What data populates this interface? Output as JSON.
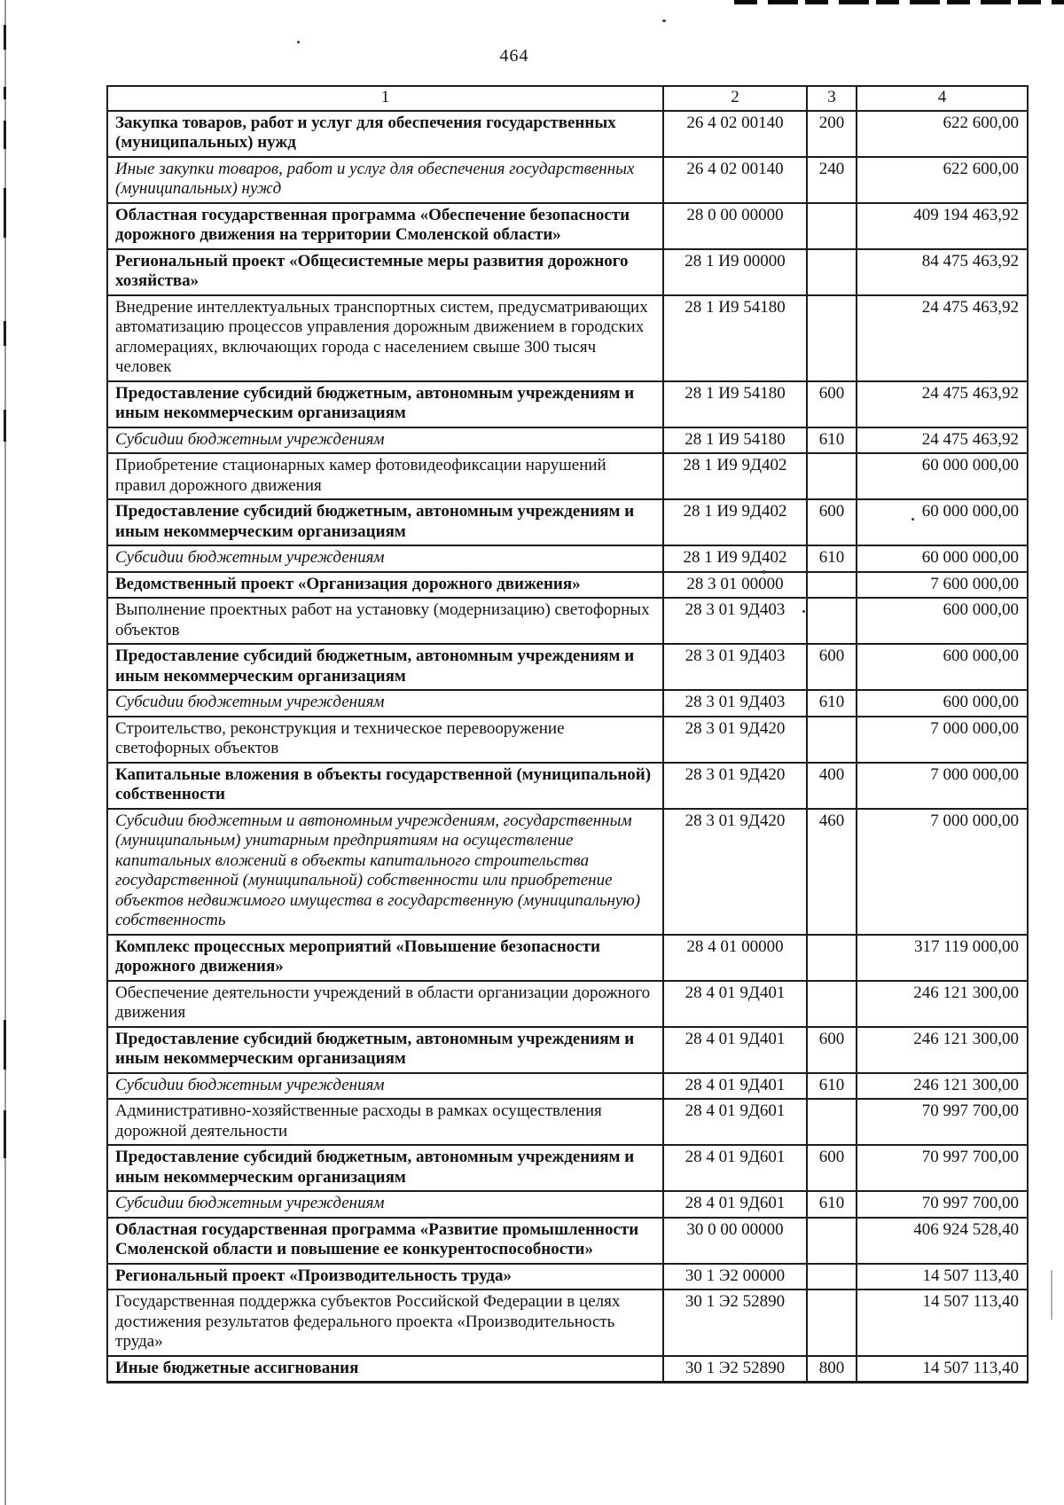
{
  "page": {
    "number": "464"
  },
  "colors": {
    "paper": "#ffffff",
    "ink": "#121212",
    "border": "#1c1c1c"
  },
  "table": {
    "headers": [
      "1",
      "2",
      "3",
      "4"
    ],
    "rows": [
      {
        "style": "bold",
        "name": "Закупка товаров, работ и услуг для обеспечения государственных (муниципальных) нужд",
        "code": "26 4 02 00140",
        "vr": "200",
        "amount": "622 600,00"
      },
      {
        "style": "italic",
        "name": "Иные закупки товаров, работ и услуг для обеспечения государственных (муниципальных) нужд",
        "code": "26 4 02 00140",
        "vr": "240",
        "amount": "622 600,00"
      },
      {
        "style": "bold",
        "name": "Областная государственная программа «Обеспечение безопасности дорожного движения на территории Смоленской области»",
        "code": "28 0 00 00000",
        "vr": "",
        "amount": "409 194 463,92"
      },
      {
        "style": "bold",
        "name": "Региональный проект «Общесистемные меры развития дорожного хозяйства»",
        "code": "28 1 И9 00000",
        "vr": "",
        "amount": "84 475 463,92"
      },
      {
        "style": "regular",
        "name": "Внедрение интеллектуальных транспортных систем, предусматривающих автоматизацию процессов управления дорожным движением в городских агломерациях, включающих города с населением свыше 300 тысяч человек",
        "code": "28 1 И9 54180",
        "vr": "",
        "amount": "24 475 463,92"
      },
      {
        "style": "bold",
        "name": "Предоставление субсидий бюджетным, автономным учреждениям и иным некоммерческим организациям",
        "code": "28 1 И9 54180",
        "vr": "600",
        "amount": "24 475 463,92"
      },
      {
        "style": "italic",
        "name": "Субсидии бюджетным учреждениям",
        "code": "28 1 И9 54180",
        "vr": "610",
        "amount": "24 475 463,92"
      },
      {
        "style": "regular",
        "name": "Приобретение стационарных камер фотовидеофиксации нарушений правил дорожного движения",
        "code": "28 1 И9 9Д402",
        "vr": "",
        "amount": "60 000 000,00"
      },
      {
        "style": "bold",
        "name": "Предоставление субсидий бюджетным, автономным учреждениям и иным некоммерческим организациям",
        "code": "28 1 И9 9Д402",
        "vr": "600",
        "amount": "60 000 000,00"
      },
      {
        "style": "italic",
        "name": "Субсидии бюджетным учреждениям",
        "code": "28 1 И9 9Д402",
        "vr": "610",
        "amount": "60 000 000,00"
      },
      {
        "style": "bold",
        "name": "Ведомственный проект «Организация дорожного движения»",
        "code": "28 3 01 00000",
        "vr": "",
        "amount": "7 600 000,00"
      },
      {
        "style": "regular",
        "name": "Выполнение проектных работ на установку (модернизацию) светофорных объектов",
        "code": "28 3 01 9Д403",
        "vr": "",
        "amount": "600 000,00"
      },
      {
        "style": "bold",
        "name": "Предоставление субсидий бюджетным, автономным учреждениям и иным некоммерческим организациям",
        "code": "28 3 01 9Д403",
        "vr": "600",
        "amount": "600 000,00"
      },
      {
        "style": "italic",
        "name": "Субсидии бюджетным учреждениям",
        "code": "28 3 01 9Д403",
        "vr": "610",
        "amount": "600 000,00"
      },
      {
        "style": "regular",
        "name": "Строительство, реконструкция и техническое перевооружение светофорных объектов",
        "code": "28 3 01 9Д420",
        "vr": "",
        "amount": "7 000 000,00"
      },
      {
        "style": "bold",
        "name": "Капитальные вложения в объекты государственной (муниципальной) собственности",
        "code": "28 3 01 9Д420",
        "vr": "400",
        "amount": "7 000 000,00"
      },
      {
        "style": "italic",
        "name": "Субсидии бюджетным и автономным учреждениям, государственным (муниципальным) унитарным предприятиям на осуществление капитальных вложений в объекты капитального строительства государственной (муниципальной) собственности или приобретение объектов недвижимого имущества в государственную (муниципальную) собственность",
        "code": "28 3 01 9Д420",
        "vr": "460",
        "amount": "7 000 000,00"
      },
      {
        "style": "bold",
        "name": "Комплекс процессных мероприятий «Повышение безопасности дорожного движения»",
        "code": "28 4 01 00000",
        "vr": "",
        "amount": "317 119 000,00"
      },
      {
        "style": "regular",
        "name": "Обеспечение деятельности учреждений в области организации дорожного движения",
        "code": "28 4 01 9Д401",
        "vr": "",
        "amount": "246 121 300,00"
      },
      {
        "style": "bold",
        "name": "Предоставление субсидий бюджетным, автономным учреждениям и иным некоммерческим организациям",
        "code": "28 4 01 9Д401",
        "vr": "600",
        "amount": "246 121 300,00"
      },
      {
        "style": "italic",
        "name": "Субсидии бюджетным учреждениям",
        "code": "28 4 01 9Д401",
        "vr": "610",
        "amount": "246 121 300,00"
      },
      {
        "style": "regular",
        "name": "Административно-хозяйственные расходы в рамках осуществления дорожной деятельности",
        "code": "28 4 01 9Д601",
        "vr": "",
        "amount": "70 997 700,00"
      },
      {
        "style": "bold",
        "name": "Предоставление субсидий бюджетным, автономным учреждениям и иным некоммерческим организациям",
        "code": "28 4 01 9Д601",
        "vr": "600",
        "amount": "70 997 700,00"
      },
      {
        "style": "italic",
        "name": "Субсидии бюджетным учреждениям",
        "code": "28 4 01 9Д601",
        "vr": "610",
        "amount": "70 997 700,00"
      },
      {
        "style": "bold",
        "name": "Областная государственная программа «Развитие промышленности Смоленской области и повышение ее конкурентоспособности»",
        "code": "30 0 00 00000",
        "vr": "",
        "amount": "406 924 528,40"
      },
      {
        "style": "bold",
        "name": "Региональный проект «Производительность труда»",
        "code": "30 1 Э2 00000",
        "vr": "",
        "amount": "14 507 113,40"
      },
      {
        "style": "regular",
        "name": "Государственная поддержка субъектов Российской Федерации в целях достижения результатов федерального проекта «Производительность труда»",
        "code": "30 1 Э2 52890",
        "vr": "",
        "amount": "14 507 113,40"
      },
      {
        "style": "bold",
        "name": "Иные бюджетные ассигнования",
        "code": "30 1 Э2 52890",
        "vr": "800",
        "amount": "14 507 113,40"
      }
    ]
  }
}
